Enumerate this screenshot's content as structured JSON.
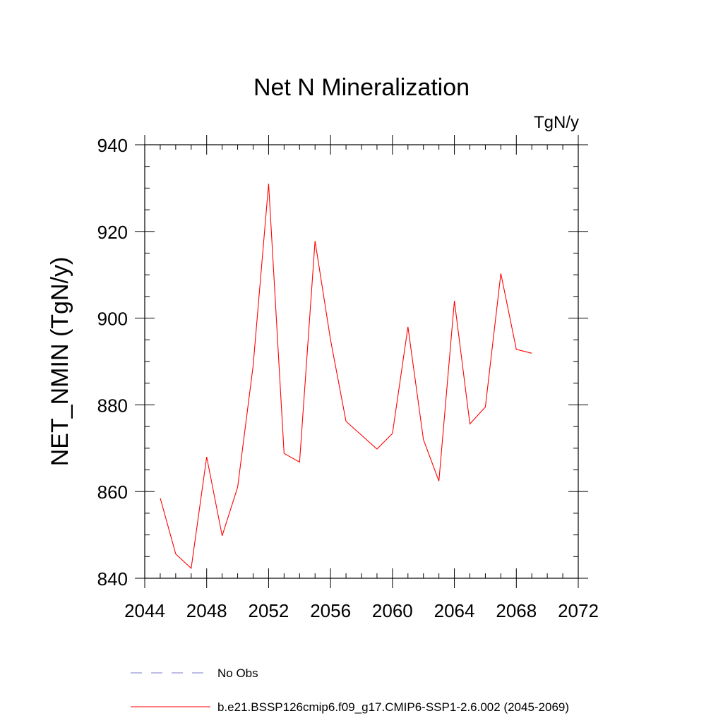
{
  "chart_data": {
    "type": "line",
    "title": "Net N Mineralization",
    "units_label": "TgN/y",
    "ylabel": "NET_NMIN  (TgN/y)",
    "xlabel": "",
    "xlim": [
      2044,
      2072
    ],
    "ylim": [
      840,
      940
    ],
    "x_ticks": [
      2044,
      2048,
      2052,
      2056,
      2060,
      2064,
      2068,
      2072
    ],
    "y_ticks": [
      840,
      860,
      880,
      900,
      920,
      940
    ],
    "x_minor_step": 1,
    "y_minor_step": 5,
    "grid": false,
    "series": [
      {
        "name": "b.e21.BSSP126cmip6.f09_g17.CMIP6-SSP1-2.6.002 (2045-2069)",
        "color": "#ff0000",
        "dash": "solid",
        "x": [
          2045,
          2046,
          2047,
          2048,
          2049,
          2050,
          2051,
          2052,
          2053,
          2054,
          2055,
          2056,
          2057,
          2058,
          2059,
          2060,
          2061,
          2062,
          2063,
          2064,
          2065,
          2066,
          2067,
          2068,
          2069
        ],
        "values": [
          858.5,
          845.6,
          842.3,
          868.0,
          849.8,
          861.0,
          889.0,
          931.0,
          868.8,
          866.8,
          917.8,
          895.0,
          876.2,
          873.0,
          869.8,
          873.4,
          898.0,
          872.0,
          862.4,
          904.0,
          875.6,
          879.5,
          910.3,
          892.8,
          891.9
        ]
      }
    ]
  },
  "legend": {
    "items": [
      {
        "label": "No Obs",
        "color": "#7b7bcc",
        "dash": "dashed"
      },
      {
        "label": "b.e21.BSSP126cmip6.f09_g17.CMIP6-SSP1-2.6.002 (2045-2069)",
        "color": "#ff0000",
        "dash": "solid"
      }
    ]
  }
}
